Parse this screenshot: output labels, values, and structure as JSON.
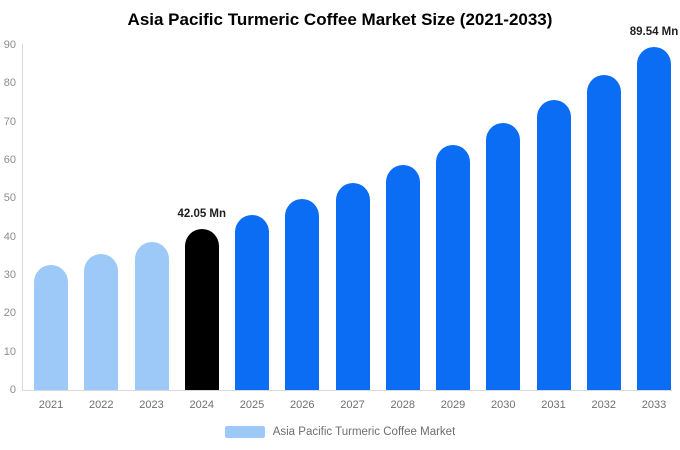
{
  "chart_data": {
    "type": "bar",
    "title": "Asia Pacific Turmeric Coffee Market Size (2021-2033)",
    "legend": "Asia Pacific Turmeric Coffee Market",
    "categories": [
      "2021",
      "2022",
      "2023",
      "2024",
      "2025",
      "2026",
      "2027",
      "2028",
      "2029",
      "2030",
      "2031",
      "2032",
      "2033"
    ],
    "values": [
      32.7,
      35.6,
      38.7,
      42.05,
      45.7,
      49.7,
      54.1,
      58.8,
      64.0,
      69.6,
      75.7,
      82.3,
      89.54
    ],
    "unit": "Mn",
    "ylim": [
      0,
      90
    ],
    "yticks": [
      0,
      10,
      20,
      30,
      40,
      50,
      60,
      70,
      80,
      90
    ],
    "grid": false,
    "legend_position": "bottom",
    "bar_color_keys": [
      "light",
      "light",
      "light",
      "black",
      "blue",
      "blue",
      "blue",
      "blue",
      "blue",
      "blue",
      "blue",
      "blue",
      "blue"
    ],
    "palette": {
      "light": "#9DC9F8",
      "black": "#000000",
      "blue": "#0B6CF4"
    },
    "axis_color": "#D9D9D9",
    "ytick_color": "#8C8C8C",
    "xtick_color": "#6F6F6F",
    "annotations": [
      {
        "category": "2024",
        "text": "42.05 Mn"
      },
      {
        "category": "2033",
        "text": "89.54 Mn"
      }
    ]
  }
}
